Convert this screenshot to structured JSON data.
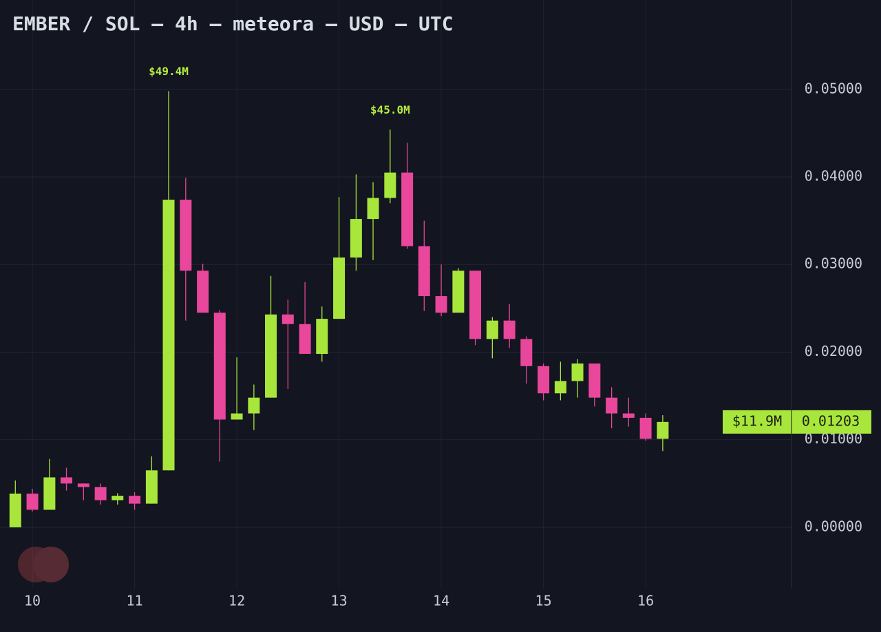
{
  "chart_data": {
    "type": "candlestick",
    "title": "EMBER / SOL — 4h — meteora — USD — UTC",
    "x": [
      9.833,
      10,
      10.167,
      10.333,
      10.5,
      10.667,
      10.833,
      11,
      11.167,
      11.333,
      11.5,
      11.667,
      11.833,
      12,
      12.167,
      12.333,
      12.5,
      12.667,
      12.833,
      13,
      13.167,
      13.333,
      13.5,
      13.667,
      13.833,
      14,
      14.167,
      14.333,
      14.5,
      14.667,
      14.833,
      15,
      15.167,
      15.333,
      15.5,
      15.667,
      15.833,
      16,
      16.167
    ],
    "open": [
      0.0,
      0.00385,
      0.002,
      0.0057,
      0.005,
      0.0046,
      0.0031,
      0.0036,
      0.0027,
      0.0065,
      0.0374,
      0.0293,
      0.0245,
      0.0123,
      0.013,
      0.0148,
      0.0243,
      0.0232,
      0.0198,
      0.0238,
      0.0308,
      0.0352,
      0.0376,
      0.0405,
      0.0321,
      0.0264,
      0.0245,
      0.0293,
      0.0215,
      0.0236,
      0.0215,
      0.0184,
      0.0153,
      0.0167,
      0.0187,
      0.0148,
      0.013,
      0.0125,
      0.0101
    ],
    "high": [
      0.00535,
      0.0044,
      0.0078,
      0.0068,
      0.005,
      0.005,
      0.0039,
      0.004,
      0.0081,
      0.0498,
      0.0399,
      0.0301,
      0.0248,
      0.0194,
      0.0163,
      0.0287,
      0.026,
      0.028,
      0.0252,
      0.0377,
      0.0403,
      0.0394,
      0.0454,
      0.0439,
      0.035,
      0.03,
      0.0296,
      0.0293,
      0.024,
      0.0255,
      0.0218,
      0.0187,
      0.0189,
      0.0192,
      0.0187,
      0.016,
      0.0148,
      0.013,
      0.0128
    ],
    "low": [
      0.0,
      0.0018,
      0.002,
      0.0042,
      0.0031,
      0.0026,
      0.0026,
      0.002,
      0.0027,
      0.0065,
      0.0236,
      0.0245,
      0.0075,
      0.0123,
      0.0111,
      0.0148,
      0.0158,
      0.0198,
      0.0189,
      0.0238,
      0.0293,
      0.0305,
      0.037,
      0.0318,
      0.0247,
      0.0241,
      0.0245,
      0.0208,
      0.0193,
      0.0205,
      0.0164,
      0.0145,
      0.0145,
      0.0148,
      0.0138,
      0.0113,
      0.0115,
      0.0099,
      0.0087
    ],
    "close": [
      0.00385,
      0.002,
      0.0057,
      0.005,
      0.0046,
      0.0031,
      0.0036,
      0.0027,
      0.0065,
      0.0374,
      0.0293,
      0.0245,
      0.0123,
      0.013,
      0.0148,
      0.0243,
      0.0232,
      0.0198,
      0.0238,
      0.0308,
      0.0352,
      0.0376,
      0.0405,
      0.0321,
      0.0264,
      0.0245,
      0.0293,
      0.0215,
      0.0236,
      0.0215,
      0.0184,
      0.0153,
      0.0167,
      0.0187,
      0.0148,
      0.013,
      0.0125,
      0.0101,
      0.01203
    ],
    "mcap_labels": [
      null,
      null,
      null,
      null,
      null,
      null,
      null,
      null,
      null,
      "$49.4M",
      null,
      null,
      null,
      null,
      null,
      null,
      null,
      null,
      null,
      null,
      null,
      null,
      "$45.0M",
      null,
      null,
      null,
      null,
      null,
      null,
      null,
      null,
      null,
      null,
      null,
      null,
      null,
      null,
      null,
      null
    ],
    "up_color": "#a9e63c",
    "down_color": "#e8479b",
    "xlim": [
      9.683,
      17.427
    ],
    "xticks": [
      10,
      11,
      12,
      13,
      14,
      15,
      16
    ],
    "ylim": [
      -0.007,
      0.0602
    ],
    "yticks": [
      {
        "value": 0,
        "label": "0.00000"
      },
      {
        "value": 0.01,
        "label": "0.01000"
      },
      {
        "value": 0.02,
        "label": "0.02000"
      },
      {
        "value": 0.03,
        "label": "0.03000"
      },
      {
        "value": 0.04,
        "label": "0.04000"
      },
      {
        "value": 0.05,
        "label": "0.05000"
      }
    ],
    "grid": true,
    "last_price": 0.01203,
    "last_market_cap": {
      "value": 11900000,
      "label": "$11.9M"
    }
  }
}
